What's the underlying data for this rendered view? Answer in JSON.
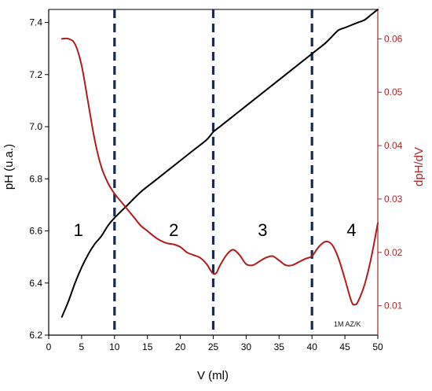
{
  "chart_data": {
    "type": "line",
    "xlabel": "V (ml)",
    "ylabel_left": "pH (u.a.)",
    "ylabel_right": "dpH/dV",
    "xlim": [
      0,
      50
    ],
    "ylim_left": [
      6.2,
      7.45
    ],
    "ylim_right": [
      0.0045,
      0.0655
    ],
    "x_ticks": [
      0,
      5,
      10,
      15,
      20,
      25,
      30,
      35,
      40,
      45,
      50
    ],
    "y_left_ticks": [
      6.2,
      6.4,
      6.6,
      6.8,
      7.0,
      7.2,
      7.4
    ],
    "y_right_ticks": [
      0.01,
      0.02,
      0.03,
      0.04,
      0.05,
      0.06
    ],
    "grid": false,
    "colors": {
      "ph": "#000000",
      "derivative": "#b01c1c",
      "right_axis": "#a52a2a",
      "divider": "#1a2a4a"
    },
    "series": [
      {
        "axis": "left",
        "x": [
          2,
          3,
          4,
          5,
          6,
          7,
          8,
          9,
          10,
          12,
          14,
          16,
          18,
          20,
          22,
          24,
          25,
          26,
          28,
          30,
          32,
          34,
          36,
          38,
          40,
          42,
          43,
          44,
          45,
          46,
          47,
          48,
          49,
          50
        ],
        "y": [
          6.27,
          6.33,
          6.4,
          6.46,
          6.51,
          6.55,
          6.58,
          6.62,
          6.65,
          6.7,
          6.75,
          6.79,
          6.83,
          6.87,
          6.91,
          6.95,
          6.98,
          7.0,
          7.04,
          7.08,
          7.12,
          7.16,
          7.2,
          7.24,
          7.28,
          7.32,
          7.345,
          7.37,
          7.38,
          7.39,
          7.4,
          7.41,
          7.43,
          7.45
        ]
      },
      {
        "axis": "right",
        "x": [
          2,
          3,
          4,
          5,
          6,
          7,
          8,
          9,
          10,
          11,
          12,
          13,
          14,
          15,
          16,
          17,
          18,
          19,
          20,
          21,
          22,
          23,
          24,
          24.5,
          25,
          25.5,
          26,
          27,
          28,
          29,
          30,
          31,
          32,
          33,
          34,
          35,
          36,
          37,
          38,
          39,
          40,
          41,
          42,
          43,
          44,
          45,
          46,
          46.5,
          47,
          48,
          49,
          50
        ],
        "y": [
          0.06,
          0.06,
          0.059,
          0.055,
          0.048,
          0.041,
          0.036,
          0.033,
          0.031,
          0.0295,
          0.028,
          0.0265,
          0.025,
          0.024,
          0.023,
          0.0222,
          0.0217,
          0.0215,
          0.021,
          0.02,
          0.0195,
          0.019,
          0.0178,
          0.0168,
          0.016,
          0.0162,
          0.0175,
          0.0195,
          0.0205,
          0.0195,
          0.0178,
          0.0176,
          0.0183,
          0.019,
          0.0193,
          0.0185,
          0.0176,
          0.0176,
          0.0182,
          0.0188,
          0.0193,
          0.021,
          0.022,
          0.0215,
          0.019,
          0.015,
          0.0108,
          0.0102,
          0.0108,
          0.014,
          0.019,
          0.0255
        ]
      }
    ],
    "dividers_x": [
      10,
      25,
      40
    ],
    "regions": [
      {
        "label": "1",
        "x": 4.5,
        "y": 6.58
      },
      {
        "label": "2",
        "x": 19,
        "y": 6.58
      },
      {
        "label": "3",
        "x": 32.5,
        "y": 6.58
      },
      {
        "label": "4",
        "x": 46,
        "y": 6.58
      }
    ],
    "annotation": "1M AZ/K"
  }
}
